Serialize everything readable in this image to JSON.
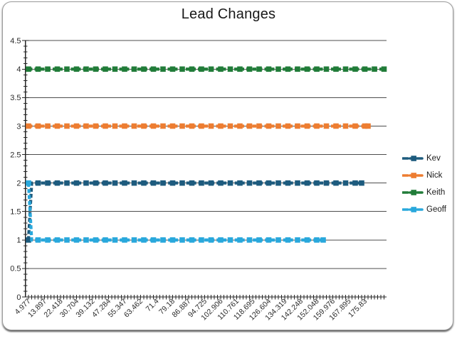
{
  "chart_data": {
    "type": "line",
    "title": "Lead Changes",
    "xlabel": "",
    "ylabel": "",
    "ylim": [
      0,
      4.5
    ],
    "y_major_tick_step": 0.5,
    "y_minor_tick_step": 0.1,
    "y_tick_labels": [
      "0",
      "0.5",
      "1",
      "1.5",
      "2",
      "2.5",
      "3",
      "3.5",
      "4",
      "4.5"
    ],
    "x_tick_labels": [
      "4.977",
      "13.897",
      "22.418",
      "30.704",
      "39.132",
      "47.284",
      "55.347",
      "63.462",
      "71.4",
      "79.18",
      "86.887",
      "94.725",
      "102.906",
      "110.761",
      "118.695",
      "126.604",
      "134.319",
      "142.248",
      "152.048",
      "159.976",
      "167.895",
      "175.83"
    ],
    "x_label_interval": 5,
    "total_categories": 112,
    "grid": "horizontal-major-on",
    "legend_position": "right",
    "line_style": "thick-dashed-with-square-markers",
    "rle_note": "points_rle = runs of [y_value, count] along the category axis",
    "series": [
      {
        "name": "Kev",
        "color": "#1d5b7e",
        "points_rle": [
          [
            1,
            1
          ],
          [
            2,
            104
          ]
        ]
      },
      {
        "name": "Nick",
        "color": "#ed7d31",
        "points_rle": [
          [
            3,
            107
          ]
        ]
      },
      {
        "name": "Keith",
        "color": "#217c39",
        "points_rle": [
          [
            4,
            112
          ]
        ]
      },
      {
        "name": "Geoff",
        "color": "#29a8dc",
        "points_rle": [
          [
            2,
            1
          ],
          [
            1,
            92
          ]
        ]
      }
    ],
    "colors": {
      "gridline": "#4d4d4d",
      "axis": "#262626",
      "tick_label": "#2b2b2b",
      "title": "#181818",
      "frame_border": "#9c9c9c"
    }
  }
}
